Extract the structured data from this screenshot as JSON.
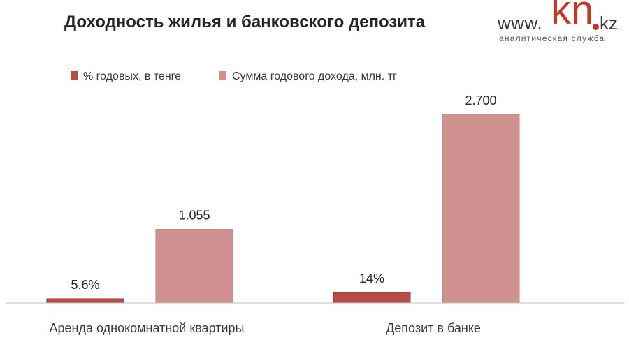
{
  "header": {
    "title": "Доходность жилья и банковского депозита"
  },
  "logo": {
    "www": "www.",
    "kn": "kn",
    "kz": "kz",
    "subtitle": "аналитическая служба"
  },
  "colors": {
    "series_1": "#b54d4a",
    "series_2": "#cf9291",
    "axis": "#bfbfbf"
  },
  "chart_data": {
    "type": "bar",
    "title": "Доходность жилья и банковского депозита",
    "categories": [
      "Аренда однокомнатной квартиры",
      "Депозит в банке"
    ],
    "series": [
      {
        "name": "% годовых, в тенге",
        "values": [
          5.6,
          14
        ],
        "data_labels": [
          "5.6%",
          "14%"
        ]
      },
      {
        "name": "Сумма годового дохода, млн. тг",
        "values": [
          1.055,
          2.7
        ],
        "data_labels": [
          "1.055",
          "2.700"
        ]
      }
    ],
    "legend_position": "top",
    "grid": false,
    "xlabel": "",
    "ylabel": ""
  }
}
